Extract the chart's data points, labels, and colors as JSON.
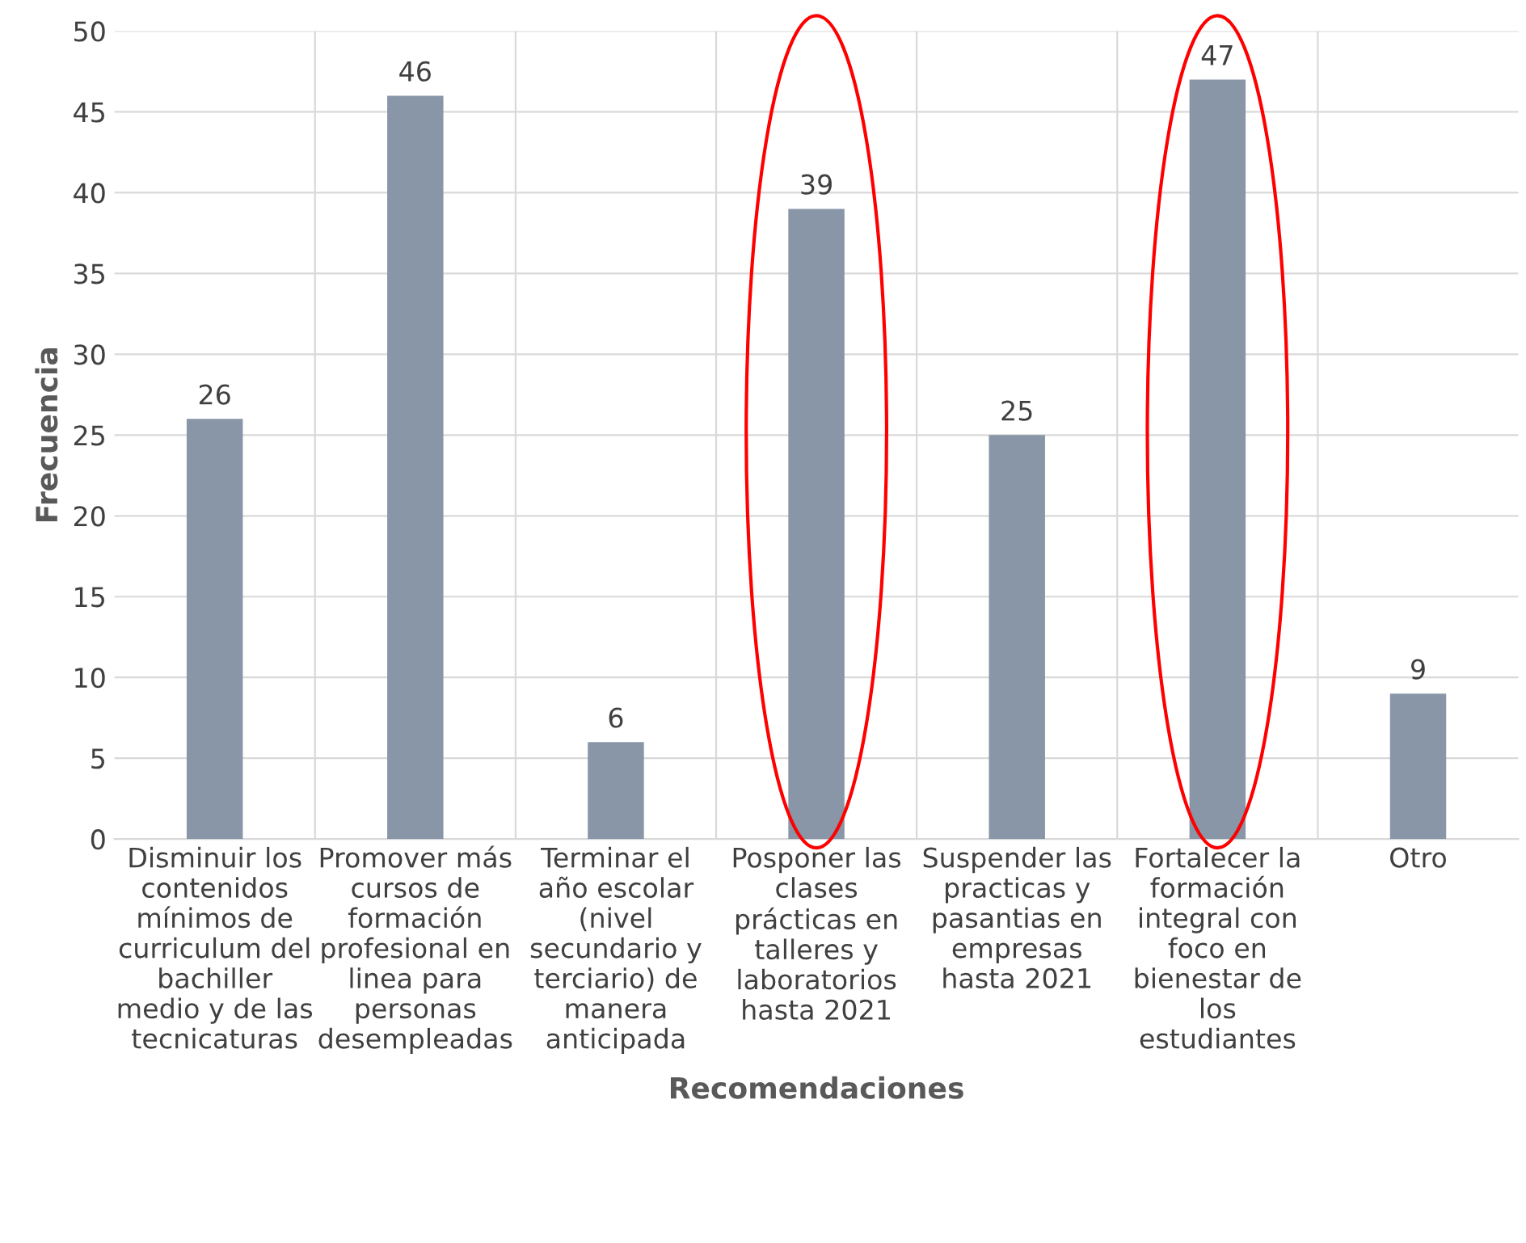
{
  "chart_data": {
    "type": "bar",
    "xlabel": "Recomendaciones",
    "ylabel": "Frecuencia",
    "categories": [
      "Disminuir los\ncontenidos\nmínimos de\ncurriculum del\nbachiller\nmedio y de las\ntecnicaturas",
      "Promover más\ncursos de\nformación\nprofesional en\nlinea para\npersonas\ndesempleadas",
      "Terminar el\naño escolar\n(nivel\nsecundario y\nterciario) de\nmanera\nanticipada",
      "Posponer las\nclases\nprácticas en\ntalleres y\nlaboratorios\nhasta 2021",
      "Suspender las\npracticas y\npasantias en\nempresas\nhasta 2021",
      "Fortalecer la\nformación\nintegral con\nfoco en\nbienestar de\nlos\nestudiantes",
      "Otro"
    ],
    "values": [
      26,
      46,
      6,
      39,
      25,
      47,
      9
    ],
    "color": "#8896a8",
    "ylim": [
      0,
      50
    ],
    "yticks": [
      0,
      5,
      10,
      15,
      20,
      25,
      30,
      35,
      40,
      45,
      50
    ],
    "grid": true,
    "data_labels": true
  }
}
